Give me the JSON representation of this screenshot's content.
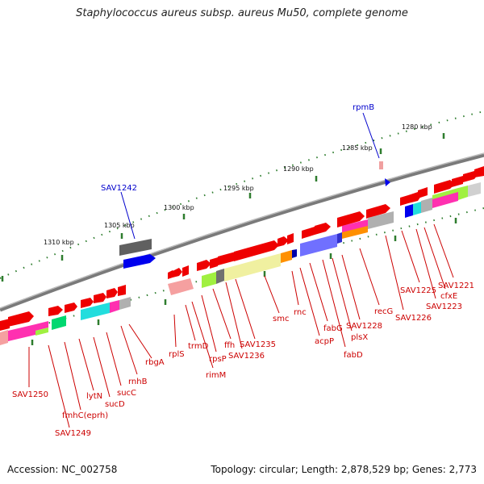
{
  "title": "Staphylococcus aureus subsp. aureus Mu50, complete genome",
  "accession": "Accession: NC_002758",
  "topology": "Topology: circular; Length: 2,878,529 bp; Genes: 2,773",
  "colors": {
    "gene_label": "#cc0000",
    "highlight_label": "#0000cc",
    "backbone": "#8a8a8a",
    "tick": "#2e7d2e",
    "cds": "#ee0000"
  },
  "kbp_labels": [
    "1280 kbp",
    "1285 kbp",
    "1290 kbp",
    "1295 kbp",
    "1300 kbp",
    "1305 kbp",
    "1310 kbp"
  ],
  "highlight_labels": [
    "rpmB",
    "SAV1242"
  ],
  "gene_labels": [
    "SAV1221",
    "cfxE",
    "SAV1223",
    "SAV1225",
    "SAV1226",
    "recG",
    "SAV1228",
    "plsX",
    "fabD",
    "fabG",
    "acpP",
    "rnc",
    "smc",
    "SAV1235",
    "SAV1236",
    "ffh",
    "rpsP",
    "rimM",
    "trmD",
    "rplS",
    "rbgA",
    "rnhB",
    "sucC",
    "sucD",
    "lytN",
    "fmhC(eprh)",
    "SAV1249",
    "SAV1250"
  ]
}
